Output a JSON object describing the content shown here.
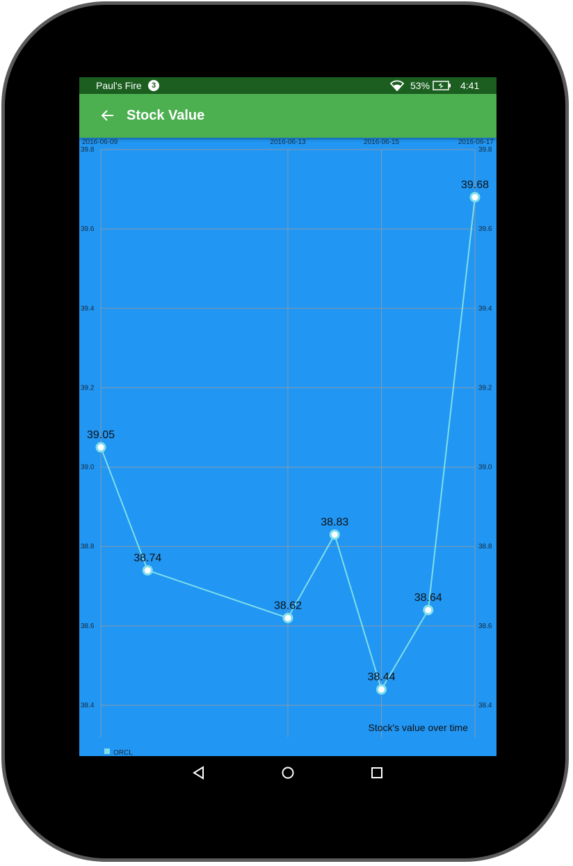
{
  "status_bar": {
    "owner": "Paul's Fire",
    "notification_count": "3",
    "battery": "53%",
    "time": "4:41",
    "icons": [
      "wifi-icon",
      "battery-charging-icon"
    ]
  },
  "app_bar": {
    "title": "Stock Value",
    "back_icon": "arrow-left-icon",
    "color": "#4caf50"
  },
  "chart_data": {
    "type": "line",
    "x": [
      "2016-06-09",
      "2016-06-10",
      "2016-06-13",
      "2016-06-14",
      "2016-06-15",
      "2016-06-16",
      "2016-06-17"
    ],
    "x_tick_labels": [
      "2016-06-09",
      "2016-06-13",
      "2016-06-15",
      "2016-06-17"
    ],
    "y_tick_labels": [
      "39.8",
      "39.6",
      "39.4",
      "39.2",
      "39.0",
      "38.8",
      "38.6",
      "38.4"
    ],
    "ylim": [
      38.4,
      39.8
    ],
    "series": [
      {
        "name": "ORCL",
        "values": [
          39.05,
          38.74,
          38.62,
          38.83,
          38.44,
          38.64,
          39.68
        ],
        "color": "#80deea"
      }
    ],
    "data_labels": [
      "39.05",
      "38.74",
      "38.62",
      "38.83",
      "38.44",
      "38.64",
      "39.68"
    ],
    "description": "Stock's value over time",
    "legend_position": "bottom-left",
    "grid": true,
    "background": "#2196f3"
  },
  "nav_bar": {
    "icons": [
      "back-triangle-icon",
      "home-circle-icon",
      "recents-square-icon"
    ]
  }
}
